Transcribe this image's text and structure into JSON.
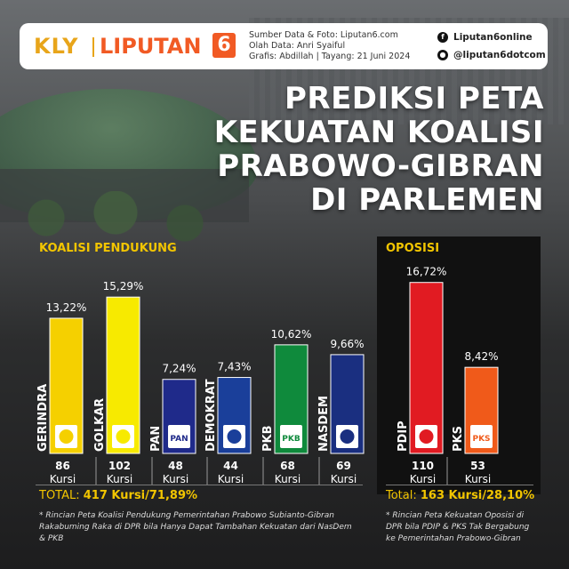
{
  "header": {
    "logo_kly": "KLY",
    "logo_brand": "LIPUTAN",
    "logo_num": "6",
    "credit_source": "Sumber Data & Foto: Liputan6.com",
    "credit_data": "Olah Data: Anri Syaiful",
    "credit_graphic": "Grafis: Abdillah | Tayang: 21 Juni 2024",
    "social_facebook": "Liputan6online",
    "social_twitter": "@liputan6dotcom"
  },
  "title_lines": [
    "PREDIKSI PETA",
    "KEKUATAN KOALISI",
    "PRABOWO-GIBRAN",
    "DI PARLEMEN"
  ],
  "koalisi_label": "KOALISI PENDUKUNG",
  "oposisi_label": "OPOSISI",
  "kursi_word": "Kursi",
  "total_koalisi": {
    "prefix": "TOTAL:",
    "value": "417 Kursi/71,89%"
  },
  "total_oposisi": {
    "prefix": "Total:",
    "value": "163 Kursi/28,10%"
  },
  "note_koalisi": "* Rincian Peta Koalisi Pendukung Pemerintahan Prabowo Subianto-Gibran Rakabuming Raka di DPR bila Hanya Dapat Tambahan Kekuatan dari NasDem & PKB",
  "note_oposisi": "* Rincian Peta Kekuatan Oposisi di DPR bila PDIP & PKS Tak Bergabung ke Pemerintahan Prabowo-Gibran",
  "chart_data": {
    "type": "bar",
    "categories": [
      "GERINDRA",
      "GOLKAR",
      "PAN",
      "DEMOKRAT",
      "PKB",
      "NASDEM",
      "PDIP",
      "PKS"
    ],
    "values": [
      13.22,
      15.29,
      7.24,
      7.43,
      10.62,
      9.66,
      16.72,
      8.42
    ],
    "value_labels": [
      "13,22%",
      "15,29%",
      "7,24%",
      "7,43%",
      "10,62%",
      "9,66%",
      "16,72%",
      "8,42%"
    ],
    "seats": [
      86,
      102,
      48,
      44,
      68,
      69,
      110,
      53
    ],
    "groups": [
      "KOALISI PENDUKUNG",
      "KOALISI PENDUKUNG",
      "KOALISI PENDUKUNG",
      "KOALISI PENDUKUNG",
      "KOALISI PENDUKUNG",
      "KOALISI PENDUKUNG",
      "OPOSISI",
      "OPOSISI"
    ],
    "logo_labels": [
      "",
      "",
      "PAN",
      "",
      "PKB",
      "",
      "",
      "PKS"
    ],
    "colors": [
      "#f5d000",
      "#f7ea00",
      "#1f2a8a",
      "#1a3f9a",
      "#0f8a3c",
      "#1a2f80",
      "#e11b22",
      "#f05a1a"
    ],
    "ylim": [
      0,
      18
    ]
  }
}
